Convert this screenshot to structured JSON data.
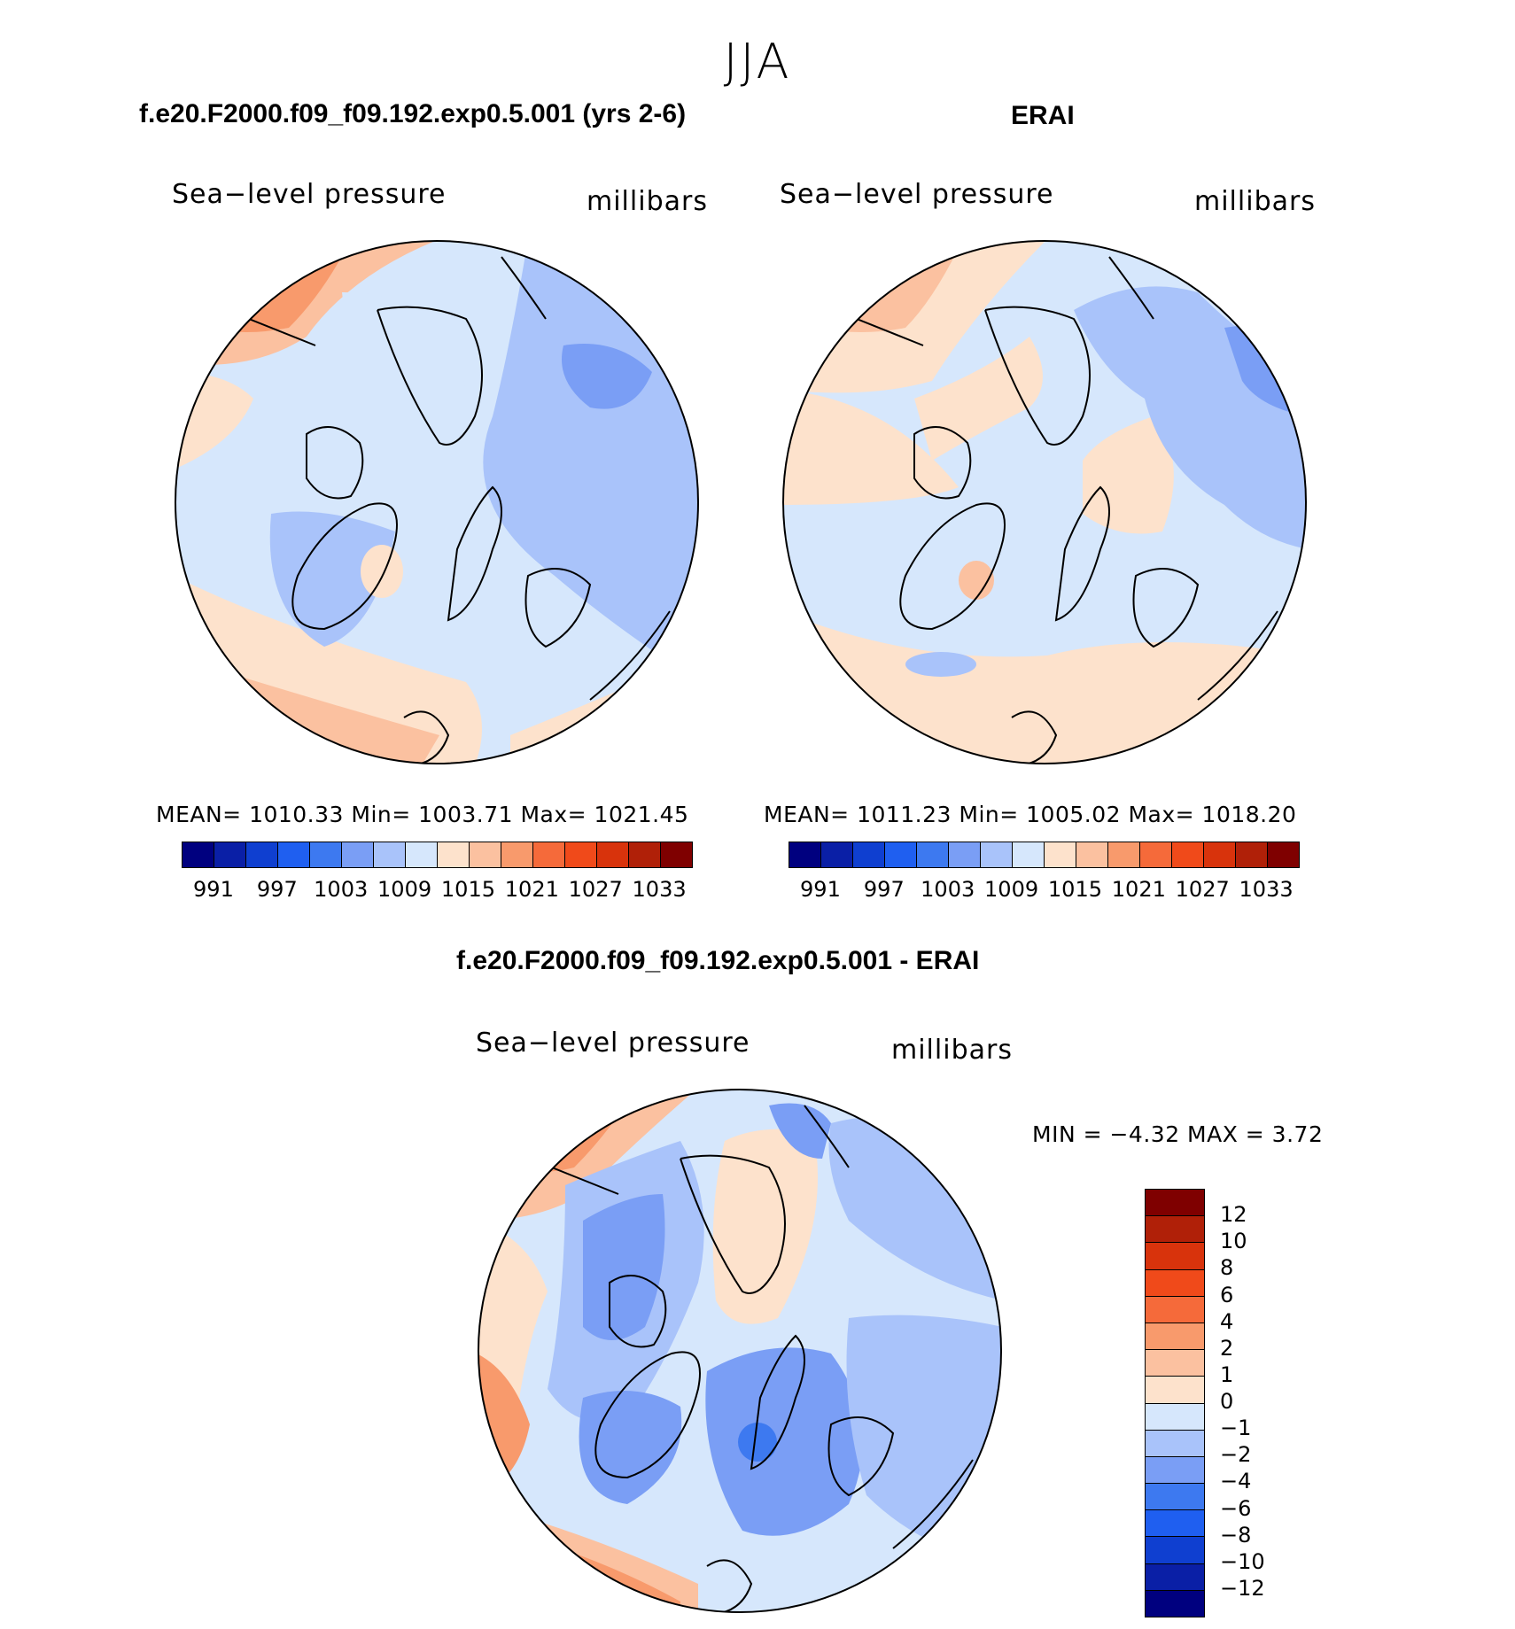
{
  "title": "JJA",
  "panel_left": {
    "title": "f.e20.F2000.f09_f09.192.exp0.5.001 (yrs 2-6)",
    "field": "Sea−level pressure",
    "units": "millibars",
    "stats": "MEAN=  1010.33   Min=  1003.71   Max=  1021.45"
  },
  "panel_right": {
    "title": "ERAI",
    "field": "Sea−level pressure",
    "units": "millibars",
    "stats": "MEAN=  1011.23   Min=  1005.02   Max=  1018.20"
  },
  "panel_diff": {
    "title": "f.e20.F2000.f09_f09.192.exp0.5.001 - ERAI",
    "field": "Sea−level pressure",
    "units": "millibars",
    "stats": "MIN =    −4.32  MAX =      3.72"
  },
  "abs_colorbar": {
    "colors": [
      "#00007f",
      "#0a1fa6",
      "#0f3fd0",
      "#1f5ff0",
      "#3d79f0",
      "#7a9ef5",
      "#a9c3fa",
      "#d6e7fc",
      "#fde2cc",
      "#fbc1a0",
      "#f89a6c",
      "#f56a3a",
      "#f04a1a",
      "#d8330c",
      "#b02008",
      "#7f0000"
    ],
    "labels": [
      "991",
      "997",
      "1003",
      "1009",
      "1015",
      "1021",
      "1027",
      "1033"
    ]
  },
  "diff_colorbar": {
    "colors": [
      "#7f0000",
      "#b02008",
      "#d8330c",
      "#f04a1a",
      "#f56a3a",
      "#f89a6c",
      "#fbc1a0",
      "#fde2cc",
      "#d6e7fc",
      "#a9c3fa",
      "#7a9ef5",
      "#3d79f0",
      "#1f5ff0",
      "#0f3fd0",
      "#0a1fa6",
      "#00007f"
    ],
    "labels": [
      "12",
      "10",
      "8",
      "6",
      "4",
      "2",
      "1",
      "0",
      "−1",
      "−2",
      "−4",
      "−6",
      "−8",
      "−10",
      "−12"
    ]
  }
}
